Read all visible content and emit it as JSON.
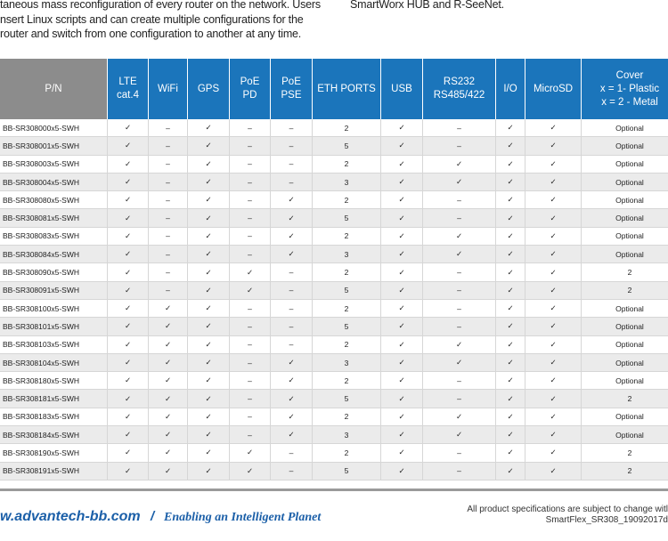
{
  "intro": {
    "left_lines": [
      "taneous mass reconfiguration of every router on the network. Users",
      "nsert Linux scripts and can create multiple configurations for the",
      "router and switch from one configuration to another at any time."
    ],
    "right_lines": [
      "SmartWorx HUB and R-SeeNet."
    ]
  },
  "table": {
    "header": [
      "P/N",
      "LTE\ncat.4",
      "WiFi",
      "GPS",
      "PoE\nPD",
      "PoE\nPSE",
      "ETH PORTS",
      "USB",
      "RS232\nRS485/422",
      "I/O",
      "MicroSD",
      "Cover\nx = 1- Plastic\nx = 2 - Metal"
    ],
    "rows": [
      [
        "BB-SR308000x5-SWH",
        "✓",
        "–",
        "✓",
        "–",
        "–",
        "2",
        "✓",
        "–",
        "✓",
        "✓",
        "Optional"
      ],
      [
        "BB-SR308001x5-SWH",
        "✓",
        "–",
        "✓",
        "–",
        "–",
        "5",
        "✓",
        "–",
        "✓",
        "✓",
        "Optional"
      ],
      [
        "BB-SR308003x5-SWH",
        "✓",
        "–",
        "✓",
        "–",
        "–",
        "2",
        "✓",
        "✓",
        "✓",
        "✓",
        "Optional"
      ],
      [
        "BB-SR308004x5-SWH",
        "✓",
        "–",
        "✓",
        "–",
        "–",
        "3",
        "✓",
        "✓",
        "✓",
        "✓",
        "Optional"
      ],
      [
        "BB-SR308080x5-SWH",
        "✓",
        "–",
        "✓",
        "–",
        "✓",
        "2",
        "✓",
        "–",
        "✓",
        "✓",
        "Optional"
      ],
      [
        "BB-SR308081x5-SWH",
        "✓",
        "–",
        "✓",
        "–",
        "✓",
        "5",
        "✓",
        "–",
        "✓",
        "✓",
        "Optional"
      ],
      [
        "BB-SR308083x5-SWH",
        "✓",
        "–",
        "✓",
        "–",
        "✓",
        "2",
        "✓",
        "✓",
        "✓",
        "✓",
        "Optional"
      ],
      [
        "BB-SR308084x5-SWH",
        "✓",
        "–",
        "✓",
        "–",
        "✓",
        "3",
        "✓",
        "✓",
        "✓",
        "✓",
        "Optional"
      ],
      [
        "BB-SR308090x5-SWH",
        "✓",
        "–",
        "✓",
        "✓",
        "–",
        "2",
        "✓",
        "–",
        "✓",
        "✓",
        "2"
      ],
      [
        "BB-SR308091x5-SWH",
        "✓",
        "–",
        "✓",
        "✓",
        "–",
        "5",
        "✓",
        "–",
        "✓",
        "✓",
        "2"
      ],
      [
        "BB-SR308100x5-SWH",
        "✓",
        "✓",
        "✓",
        "–",
        "–",
        "2",
        "✓",
        "–",
        "✓",
        "✓",
        "Optional"
      ],
      [
        "BB-SR308101x5-SWH",
        "✓",
        "✓",
        "✓",
        "–",
        "–",
        "5",
        "✓",
        "–",
        "✓",
        "✓",
        "Optional"
      ],
      [
        "BB-SR308103x5-SWH",
        "✓",
        "✓",
        "✓",
        "–",
        "–",
        "2",
        "✓",
        "✓",
        "✓",
        "✓",
        "Optional"
      ],
      [
        "BB-SR308104x5-SWH",
        "✓",
        "✓",
        "✓",
        "–",
        "✓",
        "3",
        "✓",
        "✓",
        "✓",
        "✓",
        "Optional"
      ],
      [
        "BB-SR308180x5-SWH",
        "✓",
        "✓",
        "✓",
        "–",
        "✓",
        "2",
        "✓",
        "–",
        "✓",
        "✓",
        "Optional"
      ],
      [
        "BB-SR308181x5-SWH",
        "✓",
        "✓",
        "✓",
        "–",
        "✓",
        "5",
        "✓",
        "–",
        "✓",
        "✓",
        "2"
      ],
      [
        "BB-SR308183x5-SWH",
        "✓",
        "✓",
        "✓",
        "–",
        "✓",
        "2",
        "✓",
        "✓",
        "✓",
        "✓",
        "Optional"
      ],
      [
        "BB-SR308184x5-SWH",
        "✓",
        "✓",
        "✓",
        "–",
        "✓",
        "3",
        "✓",
        "✓",
        "✓",
        "✓",
        "Optional"
      ],
      [
        "BB-SR308190x5-SWH",
        "✓",
        "✓",
        "✓",
        "✓",
        "–",
        "2",
        "✓",
        "–",
        "✓",
        "✓",
        "2"
      ],
      [
        "BB-SR308191x5-SWH",
        "✓",
        "✓",
        "✓",
        "✓",
        "–",
        "5",
        "✓",
        "–",
        "✓",
        "✓",
        "2"
      ]
    ]
  },
  "footer": {
    "url": "w.advantech-bb.com",
    "separator": "/",
    "tagline": "Enabling an Intelligent Planet",
    "notice": "All product specifications are subject to change witl",
    "doc_id": "SmartFlex_SR308_19092017d"
  }
}
